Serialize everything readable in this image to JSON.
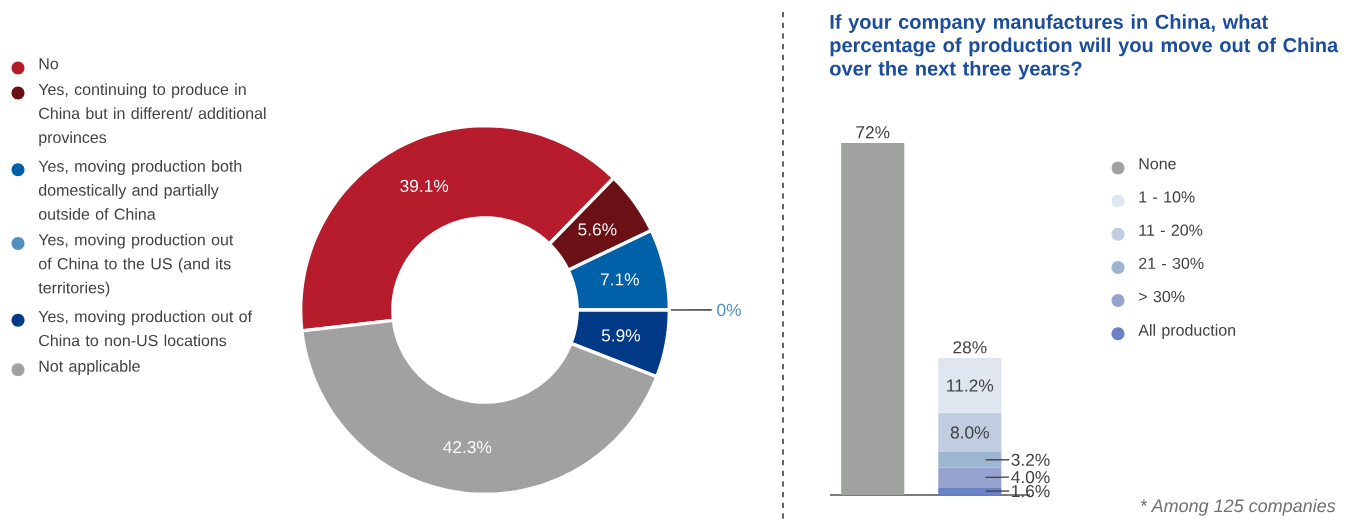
{
  "chart_data": [
    {
      "type": "donut",
      "categories": [
        "No",
        "Yes, continuing to produce in China but in different/ additional provinces",
        "Yes, moving production both domestically and partially outside of China",
        "Yes, moving production out of China to the US (and its territories)",
        "Yes, moving production out of China to non-US locations",
        "Not applicable"
      ],
      "values": [
        39.1,
        5.6,
        7.1,
        0,
        5.9,
        42.3
      ],
      "colors": [
        "#b61c2c",
        "#6b1015",
        "#0060a8",
        "#5090c0",
        "#003a87",
        "#a0a1a0"
      ],
      "value_labels": [
        "39.1%",
        "5.6%",
        "7.1%",
        "0%",
        "5.9%",
        "42.3%"
      ],
      "legend": "left"
    },
    {
      "type": "bar",
      "title": "If your company manufactures in China, what percentage of production will you move out of China over the next three years?",
      "stacked": true,
      "categories": [
        null,
        null
      ],
      "series": [
        {
          "name": "None",
          "color": "#a0a2a0",
          "values": [
            72,
            null
          ],
          "value_labels": [
            "72%",
            null
          ]
        },
        {
          "name": "All production",
          "color": "#6a82c5",
          "values": [
            null,
            1.6
          ],
          "value_labels": [
            null,
            "1.6%"
          ]
        },
        {
          "name": "> 30%",
          "color": "#96a3cf",
          "values": [
            null,
            4.0
          ],
          "value_labels": [
            null,
            "4.0%"
          ]
        },
        {
          "name": "21 - 30%",
          "color": "#9cb5d0",
          "values": [
            null,
            3.2
          ],
          "value_labels": [
            null,
            "3.2%"
          ]
        },
        {
          "name": "11 - 20%",
          "color": "#c0cde0",
          "values": [
            null,
            8.0
          ],
          "value_labels": [
            null,
            "8.0%"
          ]
        },
        {
          "name": "1 - 10%",
          "color": "#e0e6f0",
          "values": [
            null,
            11.2
          ],
          "value_labels": [
            null,
            "11.2%"
          ]
        }
      ],
      "totals": [
        null,
        "28%"
      ],
      "annotations": [
        "* Among 125 companies"
      ],
      "legend": "right"
    }
  ]
}
